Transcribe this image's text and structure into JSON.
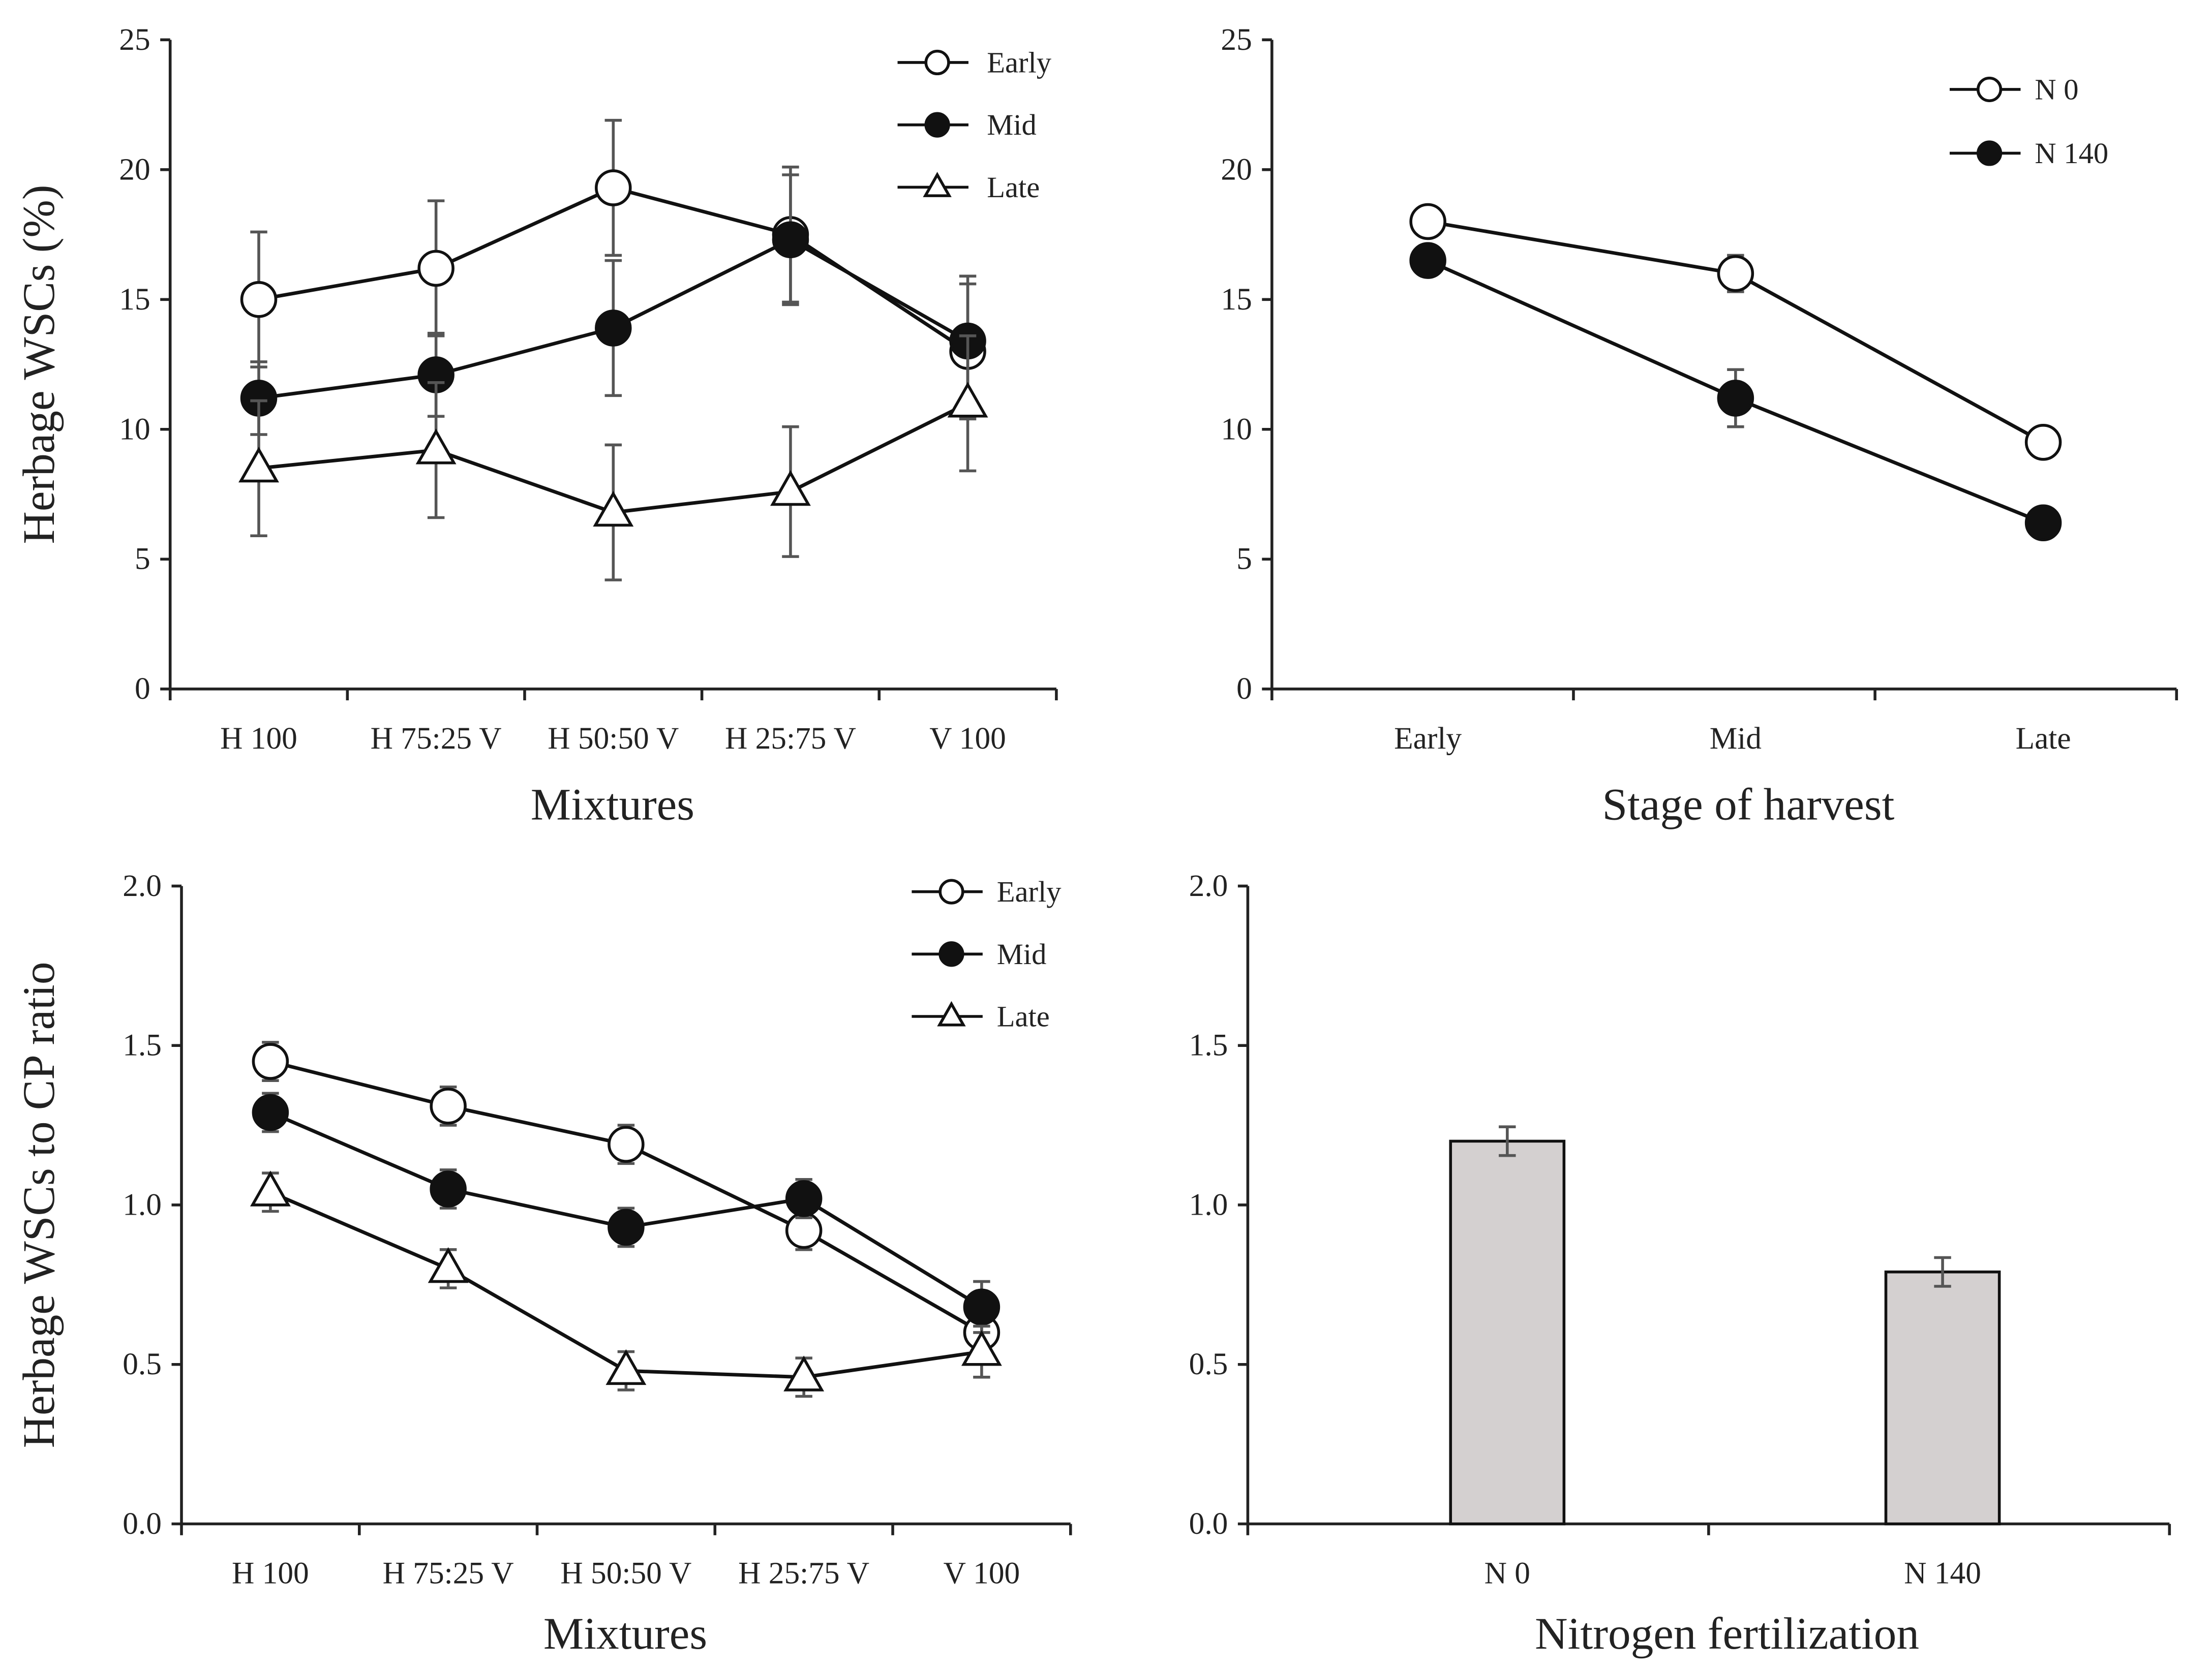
{
  "chart_data": [
    {
      "type": "line",
      "panel": "top-left",
      "xlabel": "Mixtures",
      "ylabel": "Herbage  WSCs (%)",
      "categories": [
        "H 100",
        "H 75:25 V",
        "H 50:50 V",
        "H 25:75 V",
        "V 100"
      ],
      "ylim": [
        0,
        25
      ],
      "yticks": [
        "0",
        "5",
        "10",
        "15",
        "20",
        "25"
      ],
      "legend_position": "top-right",
      "series": [
        {
          "name": "Early",
          "marker": "open-circle",
          "values": [
            15.0,
            16.2,
            19.3,
            17.5,
            13.0
          ],
          "error": [
            2.6,
            2.6,
            2.6,
            2.6,
            2.6
          ]
        },
        {
          "name": "Mid",
          "marker": "filled-circle",
          "values": [
            11.2,
            12.1,
            13.9,
            17.3,
            13.4
          ],
          "error": [
            1.4,
            1.6,
            2.6,
            2.5,
            2.5
          ]
        },
        {
          "name": "Late",
          "marker": "open-triangle",
          "values": [
            8.5,
            9.2,
            6.8,
            7.6,
            11.0
          ],
          "error": [
            2.6,
            2.6,
            2.6,
            2.5,
            2.6
          ]
        }
      ]
    },
    {
      "type": "line",
      "panel": "top-right",
      "xlabel": "Stage of harvest",
      "ylabel": "",
      "categories": [
        "Early",
        "Mid",
        "Late"
      ],
      "ylim": [
        0,
        25
      ],
      "yticks": [
        "0",
        "5",
        "10",
        "15",
        "20",
        "25"
      ],
      "legend_position": "top-right",
      "series": [
        {
          "name": "N 0",
          "marker": "open-circle",
          "values": [
            18.0,
            16.0,
            9.5
          ],
          "error": [
            0.3,
            0.7,
            0.3
          ]
        },
        {
          "name": "N 140",
          "marker": "filled-circle",
          "values": [
            16.5,
            11.2,
            6.4
          ],
          "error": [
            0.3,
            1.1,
            0.3
          ]
        }
      ]
    },
    {
      "type": "line",
      "panel": "bottom-left",
      "xlabel": "Mixtures",
      "ylabel": "Herbage  WSCs to CP ratio",
      "categories": [
        "H 100",
        "H 75:25 V",
        "H 50:50 V",
        "H 25:75 V",
        "V 100"
      ],
      "ylim": [
        0,
        2
      ],
      "yticks": [
        "0.0",
        "0.5",
        "1.0",
        "1.5",
        "2.0"
      ],
      "legend_position": "top-right",
      "series": [
        {
          "name": "Early",
          "marker": "open-circle",
          "values": [
            1.45,
            1.31,
            1.19,
            0.92,
            0.6
          ],
          "error": [
            0.06,
            0.06,
            0.06,
            0.06,
            0.06
          ]
        },
        {
          "name": "Mid",
          "marker": "filled-circle",
          "values": [
            1.29,
            1.05,
            0.93,
            1.02,
            0.68
          ],
          "error": [
            0.06,
            0.06,
            0.06,
            0.06,
            0.08
          ]
        },
        {
          "name": "Late",
          "marker": "open-triangle",
          "values": [
            1.04,
            0.8,
            0.48,
            0.46,
            0.54
          ],
          "error": [
            0.06,
            0.06,
            0.06,
            0.06,
            0.08
          ]
        }
      ]
    },
    {
      "type": "bar",
      "panel": "bottom-right",
      "xlabel": "Nitrogen fertilization",
      "ylabel": "",
      "categories": [
        "N 0",
        "N 140"
      ],
      "values": [
        1.2,
        0.79
      ],
      "error": [
        0.045,
        0.045
      ],
      "ylim": [
        0,
        2
      ],
      "yticks": [
        "0.0",
        "0.5",
        "1.0",
        "1.5",
        "2.0"
      ],
      "bar_color": "#d4d0d0"
    }
  ]
}
